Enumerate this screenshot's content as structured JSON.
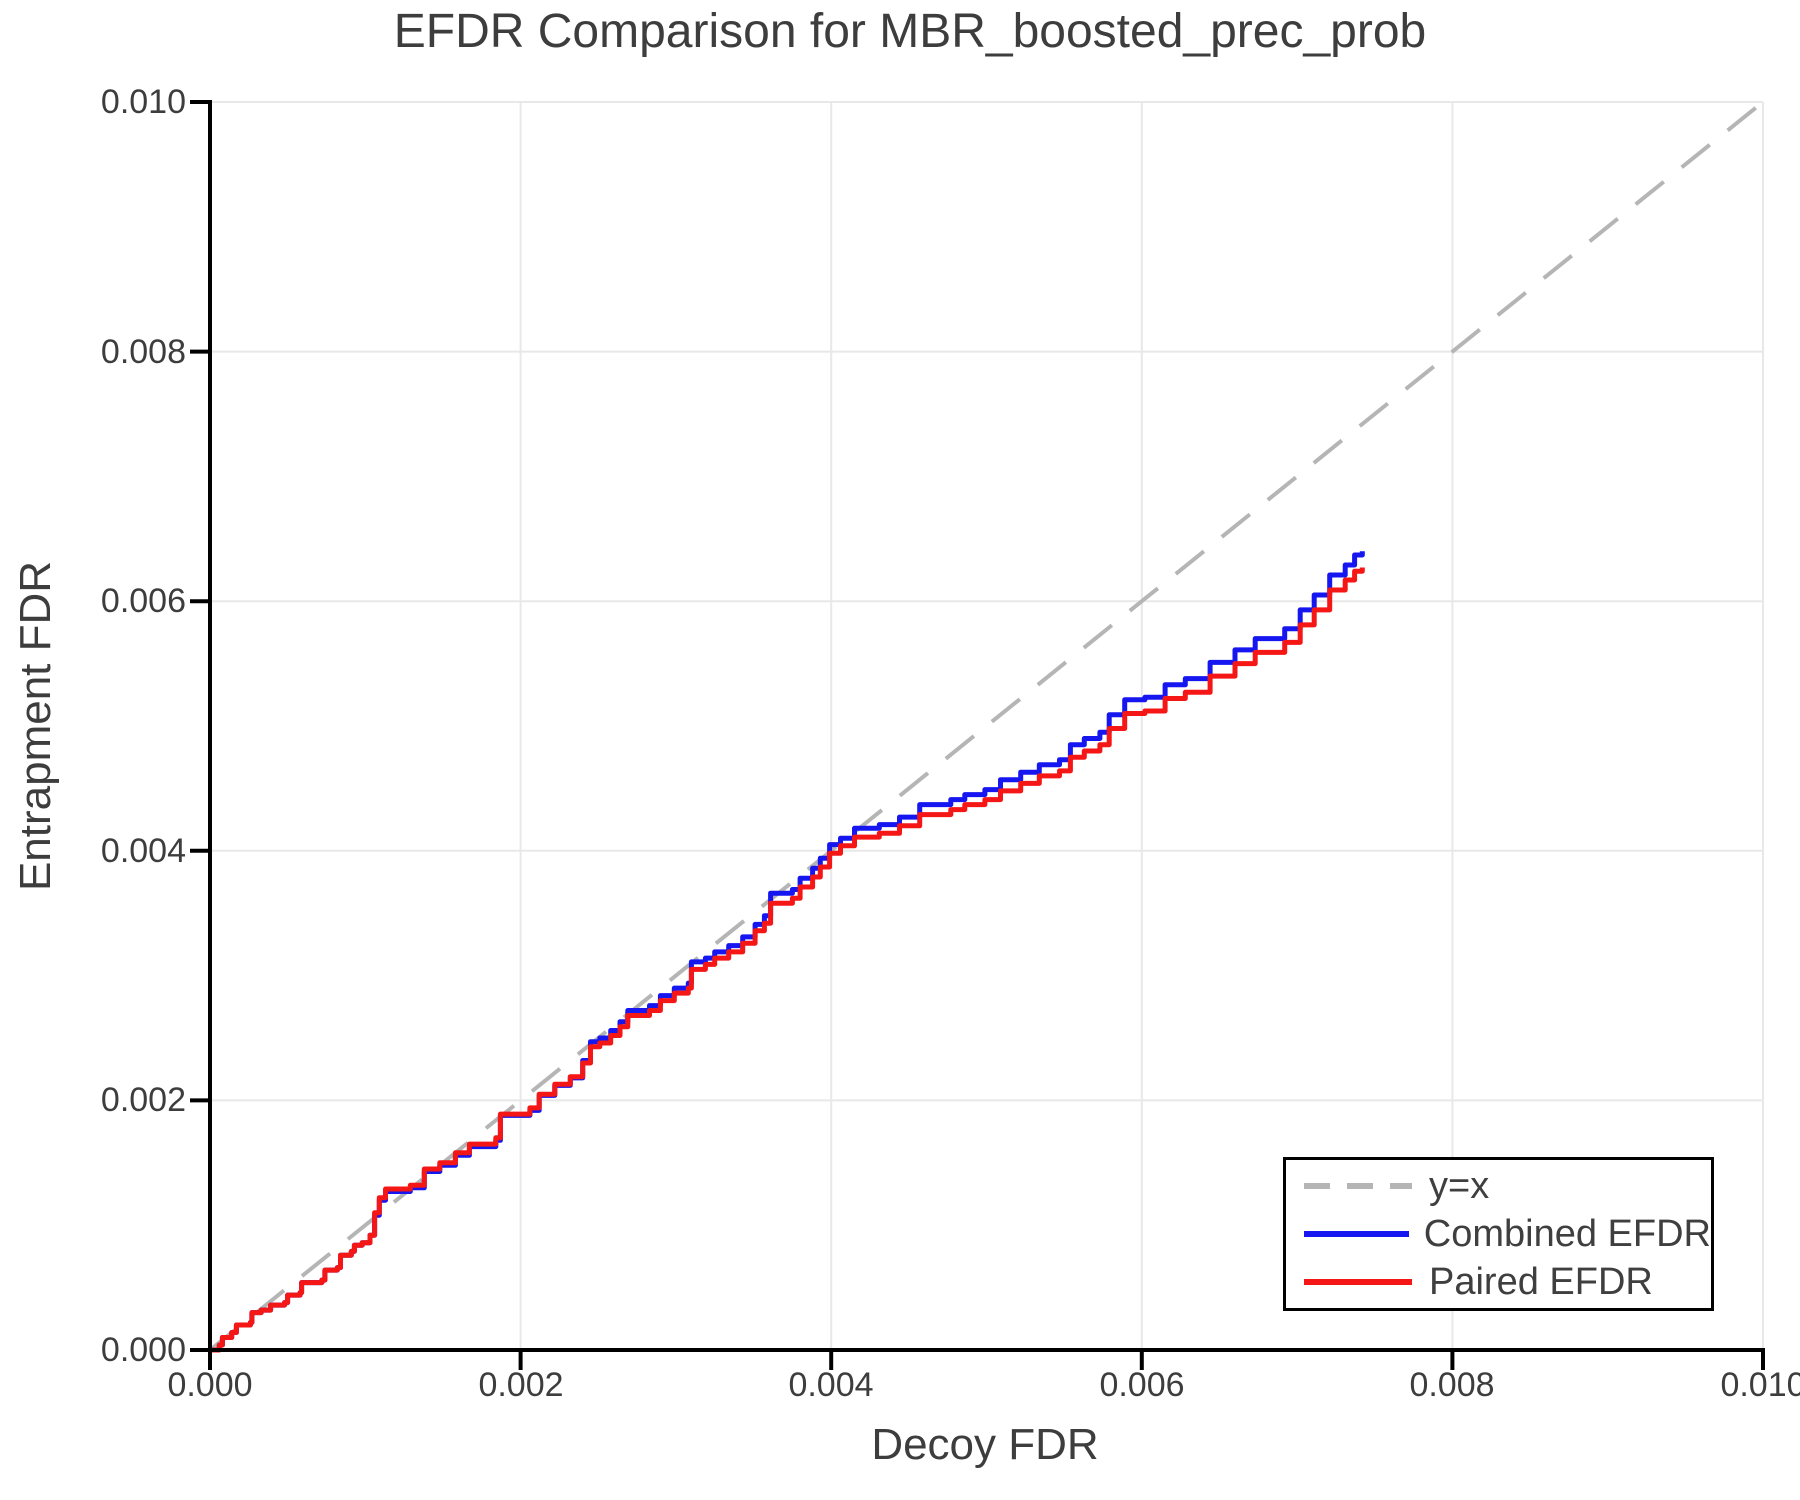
{
  "colors": {
    "grid": "#e8e8e8",
    "axis": "#000000",
    "text": "#3d3d3d",
    "background": "#ffffff"
  },
  "chart_data": {
    "type": "line",
    "title": "EFDR Comparison for MBR_boosted_prec_prob",
    "xlabel": "Decoy FDR",
    "ylabel": "Entrapment FDR",
    "xlim": [
      0.0,
      0.01
    ],
    "ylim": [
      0.0,
      0.01
    ],
    "grid": true,
    "xtick_values": [
      0.0,
      0.002,
      0.004,
      0.006,
      0.008,
      0.01
    ],
    "xtick_labels": [
      "0.000",
      "0.002",
      "0.004",
      "0.006",
      "0.008",
      "0.010"
    ],
    "ytick_values": [
      0.0,
      0.002,
      0.004,
      0.006,
      0.008,
      0.01
    ],
    "ytick_labels": [
      "0.000",
      "0.002",
      "0.004",
      "0.006",
      "0.008",
      "0.010"
    ],
    "reference_line": {
      "name": "y=x",
      "from": [
        0.0,
        0.0
      ],
      "to": [
        0.01,
        0.01
      ],
      "color": "#b5b5b5",
      "style": "dashed"
    },
    "legend": {
      "position": "lower right",
      "entries": [
        {
          "label": "y=x",
          "color": "#b5b5b5",
          "style": "dashed"
        },
        {
          "label": "Combined EFDR",
          "color": "#1616f0",
          "style": "solid"
        },
        {
          "label": "Paired EFDR",
          "color": "#f51616",
          "style": "solid"
        }
      ]
    },
    "series": [
      {
        "id": "combined-efdr",
        "name": "Combined EFDR",
        "color": "#1616f0",
        "points": [
          [
            0.0,
            0.0
          ],
          [
            6e-05,
            4e-05
          ],
          [
            8e-05,
            0.0001
          ],
          [
            0.00014,
            0.00014
          ],
          [
            0.00017,
            0.0002
          ],
          [
            0.00026,
            0.00022
          ],
          [
            0.00027,
            0.0003
          ],
          [
            0.00033,
            0.00032
          ],
          [
            0.00039,
            0.00036
          ],
          [
            0.00048,
            0.00038
          ],
          [
            0.0005,
            0.00044
          ],
          [
            0.00058,
            0.00046
          ],
          [
            0.00059,
            0.00054
          ],
          [
            0.00072,
            0.00056
          ],
          [
            0.00074,
            0.00064
          ],
          [
            0.00082,
            0.00066
          ],
          [
            0.00084,
            0.00076
          ],
          [
            0.00091,
            0.00079
          ],
          [
            0.00093,
            0.00084
          ],
          [
            0.00098,
            0.00086
          ],
          [
            0.00103,
            0.00092
          ],
          [
            0.00106,
            0.00108
          ],
          [
            0.00109,
            0.0012
          ],
          [
            0.00113,
            0.00127
          ],
          [
            0.00129,
            0.0013
          ],
          [
            0.00138,
            0.00143
          ],
          [
            0.00148,
            0.00148
          ],
          [
            0.00158,
            0.00156
          ],
          [
            0.00167,
            0.00163
          ],
          [
            0.00184,
            0.00168
          ],
          [
            0.00187,
            0.00188
          ],
          [
            0.00206,
            0.00192
          ],
          [
            0.00212,
            0.00204
          ],
          [
            0.00222,
            0.00212
          ],
          [
            0.00232,
            0.00218
          ],
          [
            0.0024,
            0.00232
          ],
          [
            0.00245,
            0.00247
          ],
          [
            0.00251,
            0.0025
          ],
          [
            0.00258,
            0.00256
          ],
          [
            0.00264,
            0.00263
          ],
          [
            0.00269,
            0.00272
          ],
          [
            0.00283,
            0.00276
          ],
          [
            0.0029,
            0.00284
          ],
          [
            0.00299,
            0.0029
          ],
          [
            0.00308,
            0.00294
          ],
          [
            0.0031,
            0.00311
          ],
          [
            0.00319,
            0.00314
          ],
          [
            0.00325,
            0.00319
          ],
          [
            0.00334,
            0.00324
          ],
          [
            0.00343,
            0.00331
          ],
          [
            0.00351,
            0.00341
          ],
          [
            0.00357,
            0.00348
          ],
          [
            0.00361,
            0.00366
          ],
          [
            0.00375,
            0.00369
          ],
          [
            0.0038,
            0.00378
          ],
          [
            0.00388,
            0.00386
          ],
          [
            0.00393,
            0.00394
          ],
          [
            0.00399,
            0.00405
          ],
          [
            0.00406,
            0.0041
          ],
          [
            0.00415,
            0.00418
          ],
          [
            0.00431,
            0.00421
          ],
          [
            0.00444,
            0.00427
          ],
          [
            0.00457,
            0.00437
          ],
          [
            0.00477,
            0.00441
          ],
          [
            0.00486,
            0.00445
          ],
          [
            0.00499,
            0.00449
          ],
          [
            0.00509,
            0.00457
          ],
          [
            0.00522,
            0.00463
          ],
          [
            0.00534,
            0.00469
          ],
          [
            0.00547,
            0.00473
          ],
          [
            0.00554,
            0.00485
          ],
          [
            0.00563,
            0.0049
          ],
          [
            0.00573,
            0.00495
          ],
          [
            0.00579,
            0.00509
          ],
          [
            0.00589,
            0.00521
          ],
          [
            0.00602,
            0.00523
          ],
          [
            0.00615,
            0.00533
          ],
          [
            0.00628,
            0.00538
          ],
          [
            0.00644,
            0.00551
          ],
          [
            0.0066,
            0.00561
          ],
          [
            0.00673,
            0.0057
          ],
          [
            0.00692,
            0.00578
          ],
          [
            0.00702,
            0.00593
          ],
          [
            0.00711,
            0.00605
          ],
          [
            0.00721,
            0.00621
          ],
          [
            0.00731,
            0.00629
          ],
          [
            0.00737,
            0.00637
          ],
          [
            0.00742,
            0.0064
          ]
        ]
      },
      {
        "id": "paired-efdr",
        "name": "Paired EFDR",
        "color": "#f51616",
        "points": [
          [
            0.0,
            0.0
          ],
          [
            6e-05,
            4e-05
          ],
          [
            8e-05,
            0.0001
          ],
          [
            0.00014,
            0.00014
          ],
          [
            0.00017,
            0.0002
          ],
          [
            0.00026,
            0.00022
          ],
          [
            0.00027,
            0.0003
          ],
          [
            0.00033,
            0.00032
          ],
          [
            0.00039,
            0.00036
          ],
          [
            0.00048,
            0.00038
          ],
          [
            0.0005,
            0.00044
          ],
          [
            0.00058,
            0.00046
          ],
          [
            0.00059,
            0.00054
          ],
          [
            0.00072,
            0.00056
          ],
          [
            0.00074,
            0.00064
          ],
          [
            0.00082,
            0.00066
          ],
          [
            0.00084,
            0.00076
          ],
          [
            0.00091,
            0.00079
          ],
          [
            0.00093,
            0.00084
          ],
          [
            0.00098,
            0.00086
          ],
          [
            0.00103,
            0.00092
          ],
          [
            0.00106,
            0.0011
          ],
          [
            0.00109,
            0.00122
          ],
          [
            0.00113,
            0.00129
          ],
          [
            0.00129,
            0.00132
          ],
          [
            0.00138,
            0.00145
          ],
          [
            0.00148,
            0.0015
          ],
          [
            0.00158,
            0.00158
          ],
          [
            0.00167,
            0.00165
          ],
          [
            0.00184,
            0.0017
          ],
          [
            0.00187,
            0.00189
          ],
          [
            0.00206,
            0.00194
          ],
          [
            0.00212,
            0.00205
          ],
          [
            0.00222,
            0.00213
          ],
          [
            0.00232,
            0.00219
          ],
          [
            0.0024,
            0.0023
          ],
          [
            0.00245,
            0.00243
          ],
          [
            0.00251,
            0.00246
          ],
          [
            0.00258,
            0.00252
          ],
          [
            0.00264,
            0.00259
          ],
          [
            0.00269,
            0.00268
          ],
          [
            0.00283,
            0.00272
          ],
          [
            0.0029,
            0.0028
          ],
          [
            0.00299,
            0.00286
          ],
          [
            0.00308,
            0.0029
          ],
          [
            0.0031,
            0.00305
          ],
          [
            0.00319,
            0.00309
          ],
          [
            0.00325,
            0.00314
          ],
          [
            0.00334,
            0.00319
          ],
          [
            0.00343,
            0.00326
          ],
          [
            0.00351,
            0.00336
          ],
          [
            0.00357,
            0.00342
          ],
          [
            0.00361,
            0.00358
          ],
          [
            0.00375,
            0.00362
          ],
          [
            0.0038,
            0.00371
          ],
          [
            0.00388,
            0.00379
          ],
          [
            0.00393,
            0.00387
          ],
          [
            0.00399,
            0.00398
          ],
          [
            0.00406,
            0.00404
          ],
          [
            0.00415,
            0.00411
          ],
          [
            0.00431,
            0.00414
          ],
          [
            0.00444,
            0.0042
          ],
          [
            0.00457,
            0.00429
          ],
          [
            0.00477,
            0.00433
          ],
          [
            0.00486,
            0.00437
          ],
          [
            0.00499,
            0.00441
          ],
          [
            0.00509,
            0.00448
          ],
          [
            0.00522,
            0.00454
          ],
          [
            0.00534,
            0.0046
          ],
          [
            0.00547,
            0.00464
          ],
          [
            0.00554,
            0.00475
          ],
          [
            0.00563,
            0.0048
          ],
          [
            0.00573,
            0.00485
          ],
          [
            0.00579,
            0.00498
          ],
          [
            0.00589,
            0.0051
          ],
          [
            0.00602,
            0.00512
          ],
          [
            0.00615,
            0.00522
          ],
          [
            0.00628,
            0.00527
          ],
          [
            0.00644,
            0.0054
          ],
          [
            0.0066,
            0.0055
          ],
          [
            0.00673,
            0.00559
          ],
          [
            0.00692,
            0.00567
          ],
          [
            0.00702,
            0.00581
          ],
          [
            0.00711,
            0.00593
          ],
          [
            0.00721,
            0.00609
          ],
          [
            0.00731,
            0.00617
          ],
          [
            0.00737,
            0.00624
          ],
          [
            0.00742,
            0.00627
          ]
        ]
      }
    ]
  }
}
